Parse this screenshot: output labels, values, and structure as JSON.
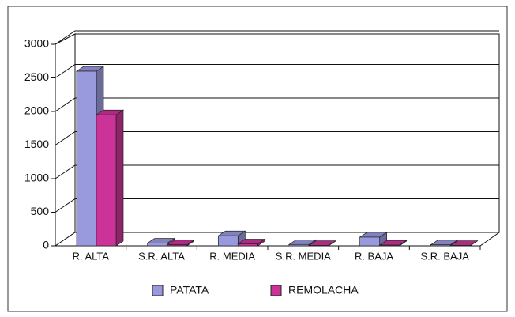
{
  "chart_data": {
    "type": "bar",
    "categories": [
      "R. ALTA",
      "S.R. ALTA",
      "R. MEDIA",
      "S.R. MEDIA",
      "R. BAJA",
      "S.R. BAJA"
    ],
    "series": [
      {
        "name": "PATATA",
        "color": "#9999dd",
        "values": [
          2600,
          40,
          150,
          20,
          130,
          15
        ]
      },
      {
        "name": "REMOLACHA",
        "color": "#cc3399",
        "values": [
          1950,
          15,
          30,
          5,
          10,
          5
        ]
      }
    ],
    "ylim": [
      0,
      3000
    ],
    "yticks": [
      0,
      500,
      1000,
      1500,
      2000,
      2500,
      3000
    ],
    "grid": true,
    "legend": "bottom"
  }
}
